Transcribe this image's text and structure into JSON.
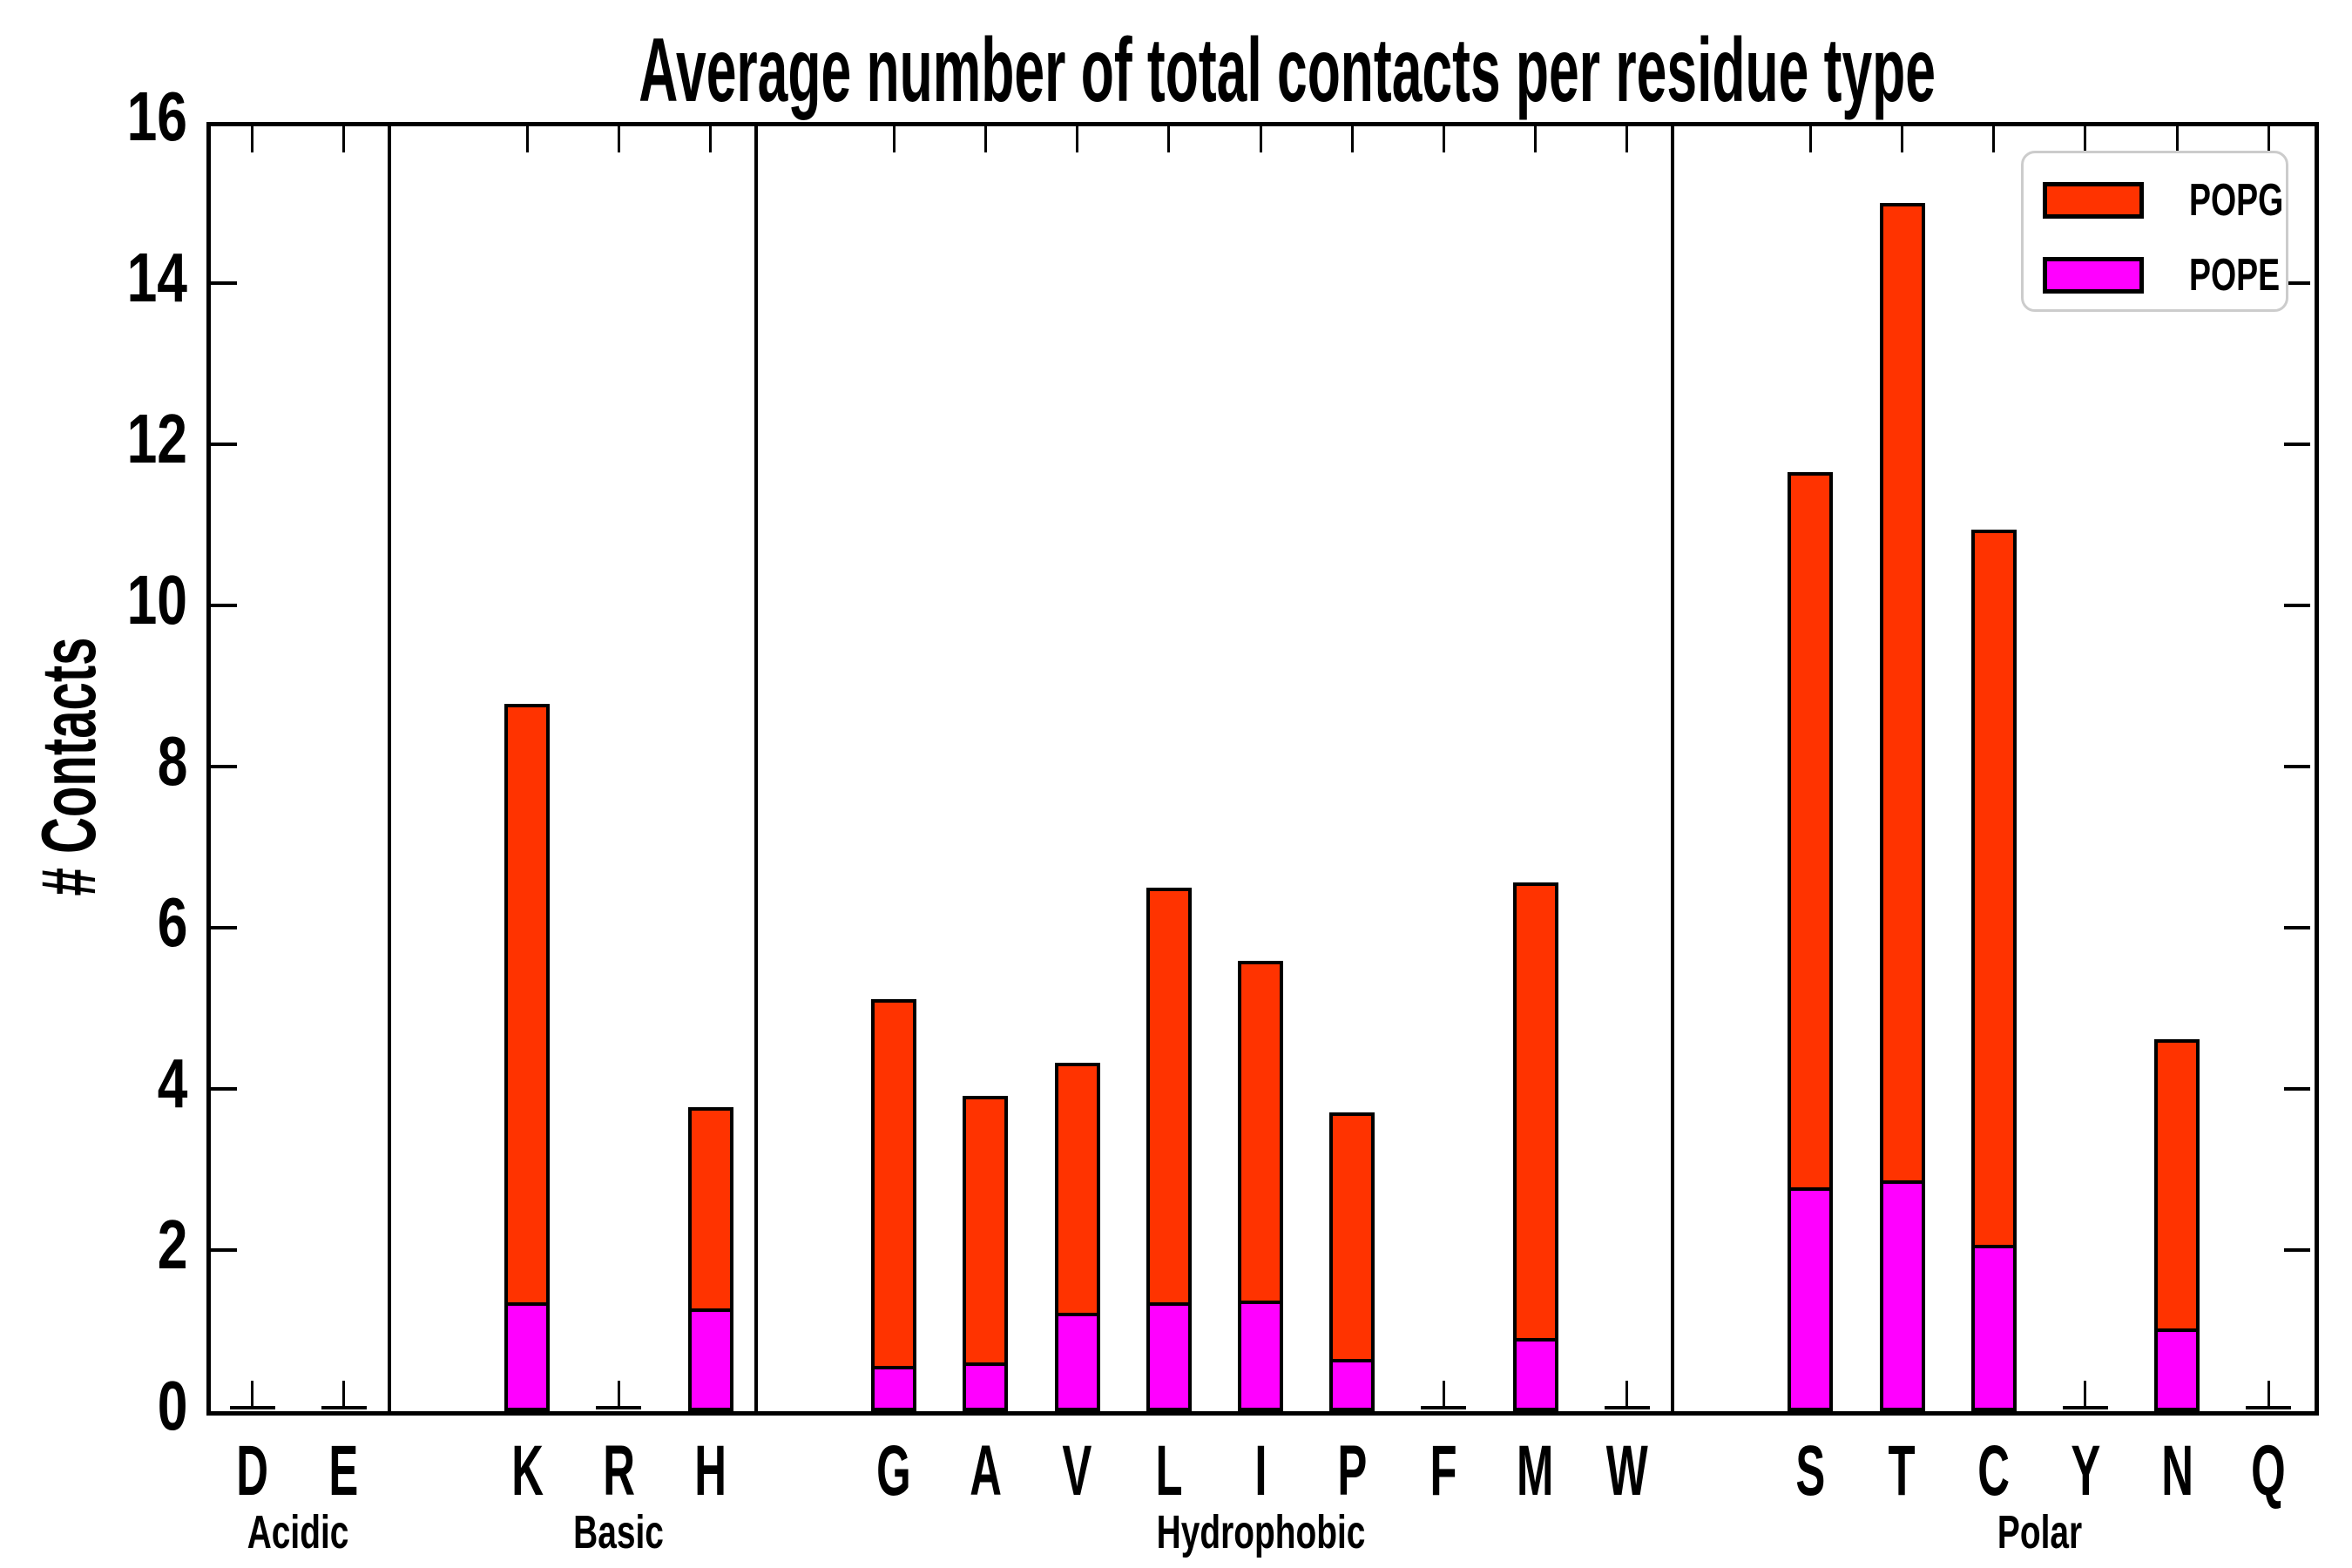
{
  "title": "Average number of total contacts per residue type",
  "ylabel": "# Contacts",
  "yticks": [
    "0",
    "2",
    "4",
    "6",
    "8",
    "10",
    "12",
    "14",
    "16"
  ],
  "legend": {
    "items": [
      {
        "label": "POPG",
        "color": "#ff3300"
      },
      {
        "label": "POPE",
        "color": "#ff00ff"
      }
    ]
  },
  "colors": {
    "popg": "#ff3300",
    "pope": "#ff00ff",
    "axis": "#000000",
    "legend_border": "#cccccc"
  },
  "chart_data": {
    "type": "bar",
    "stacked": true,
    "title": "Average number of total contacts per residue type",
    "xlabel": "",
    "ylabel": "# Contacts",
    "ylim": [
      0,
      16
    ],
    "ytick_step": 2,
    "grid": false,
    "legend_position": "upper right",
    "categories": [
      "D",
      "E",
      "K",
      "R",
      "H",
      "G",
      "A",
      "V",
      "L",
      "I",
      "P",
      "F",
      "M",
      "W",
      "S",
      "T",
      "C",
      "Y",
      "N",
      "Q"
    ],
    "groups": [
      {
        "label": "Acidic",
        "categories": [
          "D",
          "E"
        ]
      },
      {
        "label": "Basic",
        "categories": [
          "K",
          "R",
          "H"
        ]
      },
      {
        "label": "Hydrophobic",
        "categories": [
          "G",
          "A",
          "V",
          "L",
          "I",
          "P",
          "F",
          "M",
          "W"
        ]
      },
      {
        "label": "Polar",
        "categories": [
          "S",
          "T",
          "C",
          "Y",
          "N",
          "Q"
        ]
      }
    ],
    "series": [
      {
        "name": "POPE",
        "color": "#ff00ff",
        "values": [
          0.01,
          0.01,
          1.31,
          0.01,
          1.23,
          0.52,
          0.56,
          1.18,
          1.31,
          1.33,
          0.61,
          0.01,
          0.86,
          0.01,
          2.74,
          2.82,
          2.02,
          0.01,
          0.98,
          0.01
        ]
      },
      {
        "name": "POPG",
        "color": "#ff3300",
        "values": [
          0.03,
          0.02,
          7.47,
          0.02,
          2.54,
          4.59,
          3.35,
          3.14,
          5.19,
          4.26,
          3.1,
          0.03,
          5.7,
          0.01,
          8.91,
          12.18,
          8.92,
          0.02,
          3.64,
          0.01
        ]
      }
    ],
    "totals": [
      0.04,
      0.03,
      8.78,
      0.03,
      3.77,
      5.11,
      3.91,
      4.32,
      6.5,
      5.59,
      3.71,
      0.04,
      6.56,
      0.02,
      11.65,
      15.0,
      10.94,
      0.03,
      4.62,
      0.02
    ]
  }
}
